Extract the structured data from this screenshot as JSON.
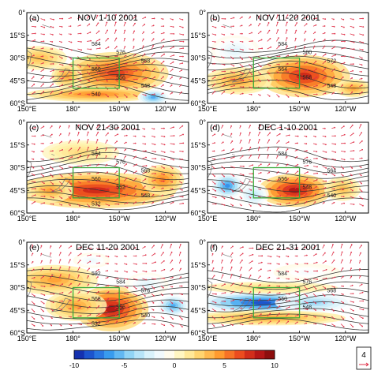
{
  "figure": {
    "axes": {
      "lat_ticks": [
        "0°",
        "15°S",
        "30°S",
        "45°S",
        "60°S"
      ],
      "lon_ticks": [
        "150°E",
        "180°",
        "150°W",
        "120°W"
      ]
    },
    "panels": [
      {
        "letter": "(a)",
        "title": "NOV 1-10 2001",
        "contour_labels": [
          "584",
          "576",
          "568",
          "560",
          "556",
          "548",
          "540"
        ],
        "anomalies": [
          {
            "lon": 158,
            "lat": -30,
            "rlon": 18,
            "rlat": 8,
            "v": 4
          },
          {
            "lon": 208,
            "lat": -40,
            "rlon": 34,
            "rlat": 14,
            "v": 8
          },
          {
            "lon": 195,
            "lat": -54,
            "rlon": 45,
            "rlat": 5,
            "v": 6
          },
          {
            "lon": 232,
            "lat": -56,
            "rlon": 10,
            "rlat": 5,
            "v": -7
          },
          {
            "lon": 176,
            "lat": -42,
            "rlon": 10,
            "rlat": 8,
            "v": 5
          }
        ]
      },
      {
        "letter": "(b)",
        "title": "NOV 11-20 2001",
        "contour_labels": [
          "584",
          "580",
          "572",
          "564",
          "556",
          "548"
        ],
        "anomalies": [
          {
            "lon": 213,
            "lat": -42,
            "rlon": 30,
            "rlat": 14,
            "v": 9
          },
          {
            "lon": 170,
            "lat": -45,
            "rlon": 22,
            "rlat": 9,
            "v": 5
          },
          {
            "lon": 168,
            "lat": -25,
            "rlon": 16,
            "rlat": 10,
            "v": -2.5
          },
          {
            "lon": 245,
            "lat": -50,
            "rlon": 12,
            "rlat": 6,
            "v": 5
          }
        ]
      },
      {
        "letter": "(c)",
        "title": "NOV 21-30 2001",
        "contour_labels": [
          "584",
          "576",
          "568",
          "560",
          "552",
          "548",
          "532"
        ],
        "anomalies": [
          {
            "lon": 195,
            "lat": -45,
            "rlon": 52,
            "rlat": 12,
            "v": 9
          },
          {
            "lon": 238,
            "lat": -38,
            "rlon": 14,
            "rlat": 10,
            "v": 6
          },
          {
            "lon": 165,
            "lat": -45,
            "rlon": 15,
            "rlat": 8,
            "v": 5
          },
          {
            "lon": 185,
            "lat": -20,
            "rlon": 25,
            "rlat": 8,
            "v": 2.5
          }
        ]
      },
      {
        "letter": "(d)",
        "title": "DEC 1-10 2001",
        "contour_labels": [
          "584",
          "576",
          "564",
          "556",
          "548",
          "540"
        ],
        "anomalies": [
          {
            "lon": 207,
            "lat": -45,
            "rlon": 24,
            "rlat": 11,
            "v": 10
          },
          {
            "lon": 163,
            "lat": -42,
            "rlon": 10,
            "rlat": 8,
            "v": -8
          },
          {
            "lon": 180,
            "lat": -48,
            "rlon": 10,
            "rlat": 8,
            "v": -4
          },
          {
            "lon": 238,
            "lat": -44,
            "rlon": 12,
            "rlat": 8,
            "v": 4
          }
        ]
      },
      {
        "letter": "(e)",
        "title": "DEC 11-20 2001",
        "contour_labels": [
          "592",
          "584",
          "576",
          "568",
          "556",
          "540",
          "532"
        ],
        "anomalies": [
          {
            "lon": 205,
            "lat": -44,
            "rlon": 24,
            "rlat": 15,
            "v": 10
          },
          {
            "lon": 168,
            "lat": -25,
            "rlon": 28,
            "rlat": 10,
            "v": 5
          },
          {
            "lon": 182,
            "lat": -42,
            "rlon": 20,
            "rlat": 10,
            "v": 5
          },
          {
            "lon": 245,
            "lat": -42,
            "rlon": 10,
            "rlat": 7,
            "v": -7
          },
          {
            "lon": 192,
            "lat": -12,
            "rlon": 12,
            "rlat": 5,
            "v": -2
          },
          {
            "lon": 228,
            "lat": -28,
            "rlon": 14,
            "rlat": 8,
            "v": -2.5
          }
        ]
      },
      {
        "letter": "(f)",
        "title": "DEC 21-31 2001",
        "contour_labels": [
          "584",
          "576",
          "568",
          "560",
          "548"
        ],
        "anomalies": [
          {
            "lon": 185,
            "lat": -40,
            "rlon": 40,
            "rlat": 7,
            "v": -10
          },
          {
            "lon": 220,
            "lat": -40,
            "rlon": 26,
            "rlat": 7,
            "v": -5
          },
          {
            "lon": 190,
            "lat": -50,
            "rlon": 50,
            "rlat": 5,
            "v": 5
          },
          {
            "lon": 190,
            "lat": -30,
            "rlon": 45,
            "rlat": 4,
            "v": 2.5
          },
          {
            "lon": 215,
            "lat": -20,
            "rlon": 22,
            "rlat": 6,
            "v": -1.5
          }
        ]
      }
    ],
    "colorbar": {
      "ticks": [
        -10,
        -5,
        0,
        5,
        10
      ],
      "stops": [
        "#1020a0",
        "#1e5fd8",
        "#3aa0f0",
        "#8fd3f5",
        "#d4f0fa",
        "#ffffff",
        "#fff3b0",
        "#ffd066",
        "#ff9a2e",
        "#f0501e",
        "#c01818",
        "#7a0a0a"
      ]
    },
    "reference_vector": {
      "value": "4"
    },
    "box": {
      "lon_min": 180,
      "lon_max": 210,
      "lat_min": -50,
      "lat_max": -30,
      "color": "#3aa83a"
    },
    "colors": {
      "contour": "#333333",
      "vector": "#e03048",
      "coast": "#777777"
    }
  }
}
